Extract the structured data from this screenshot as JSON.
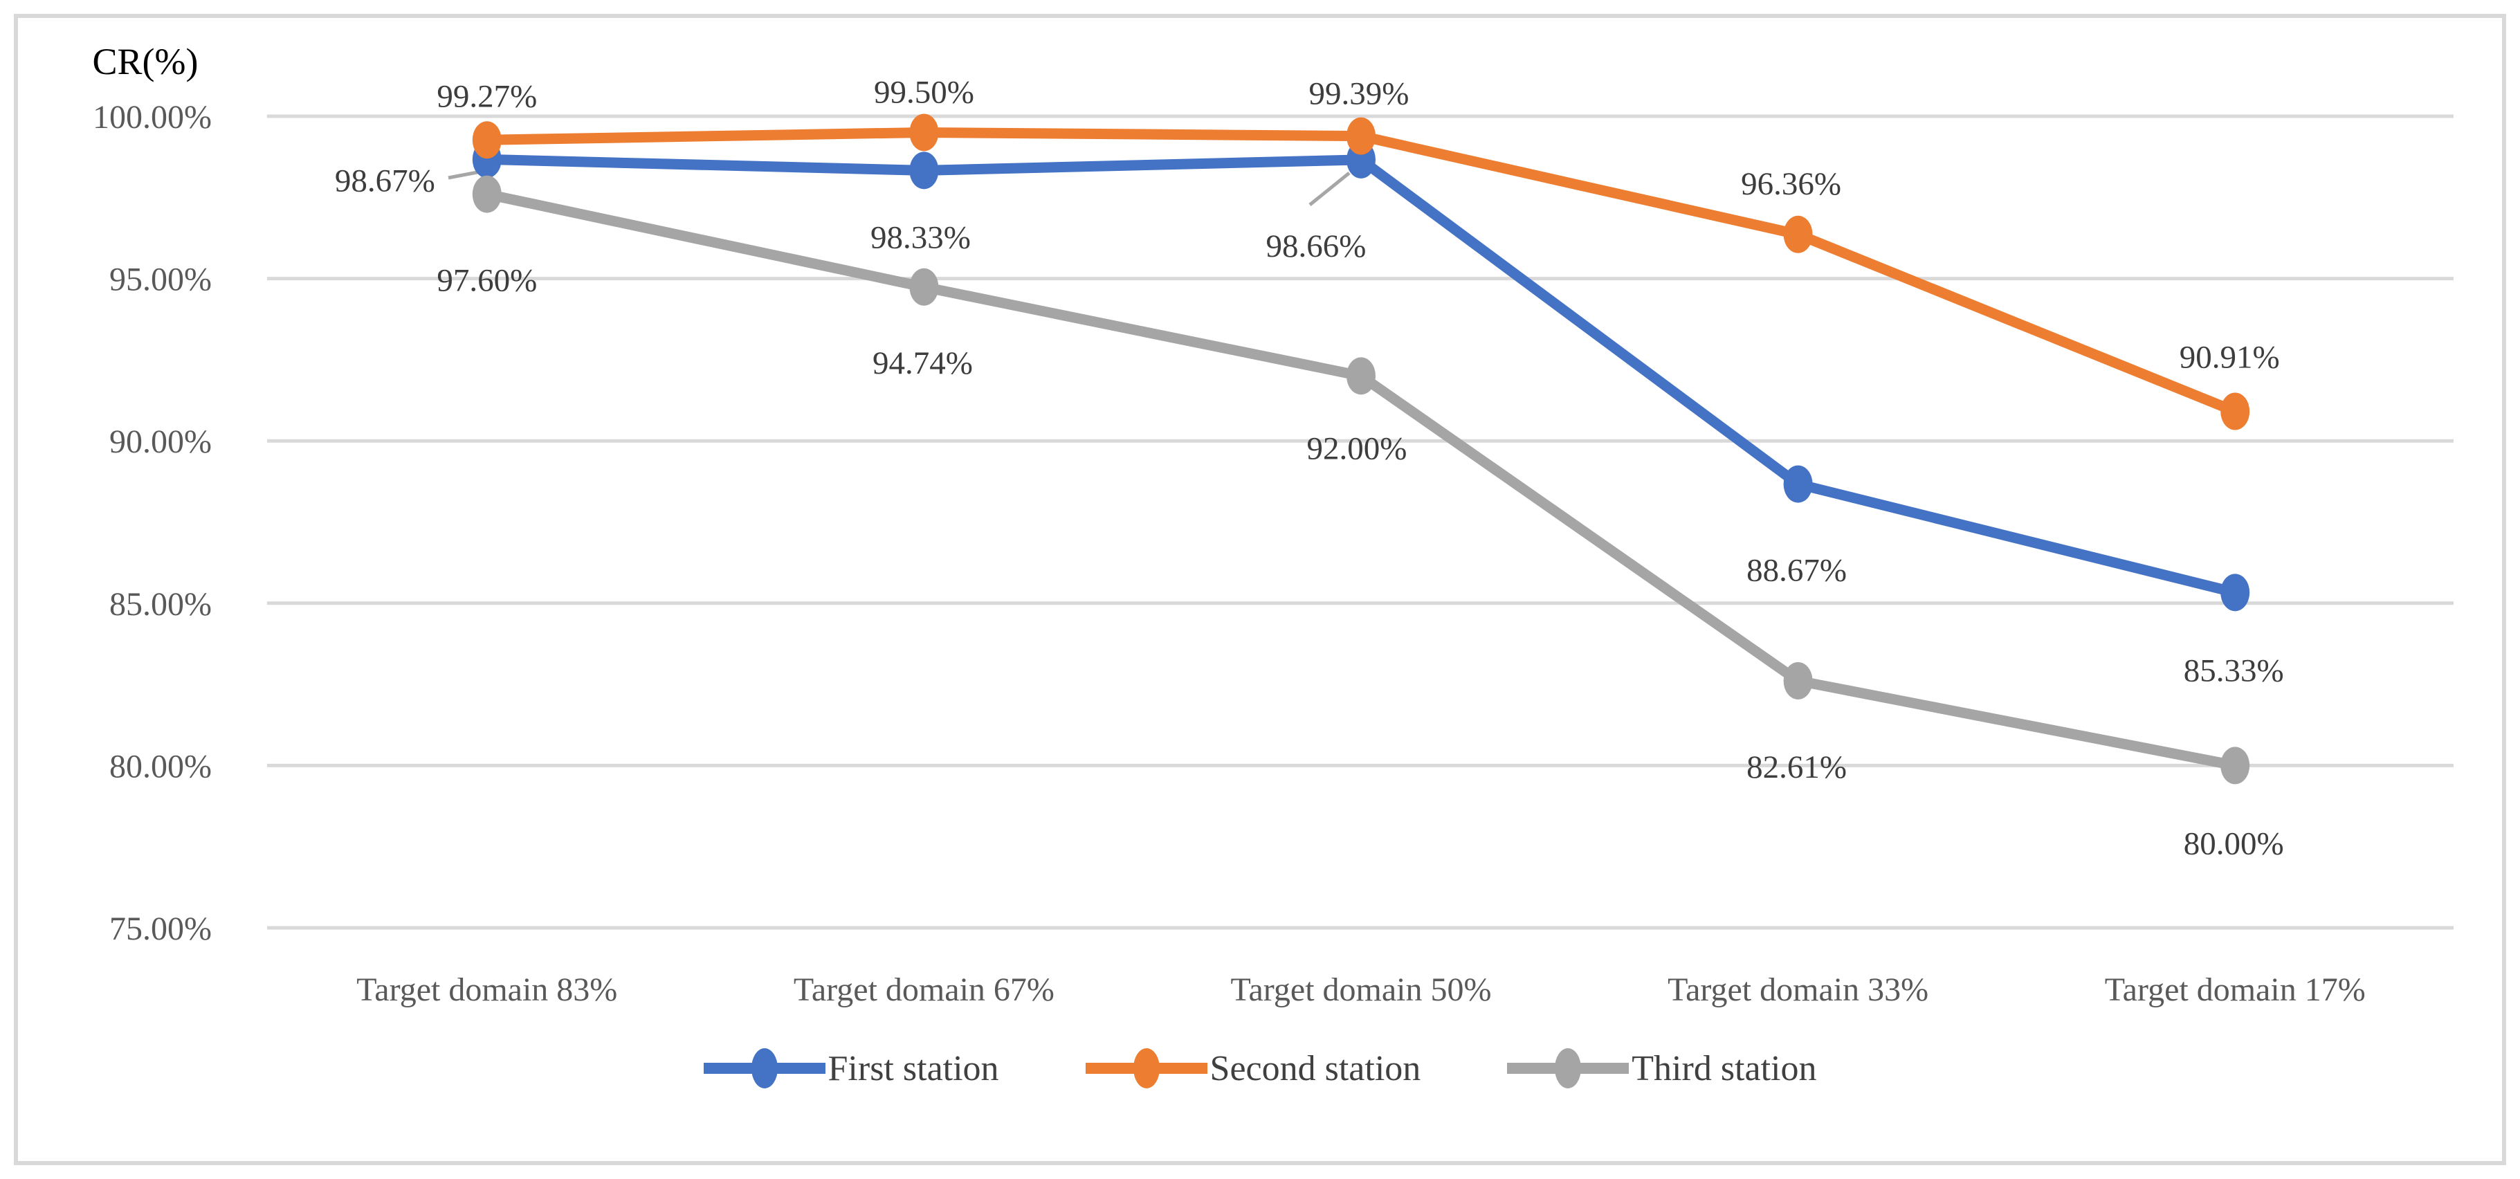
{
  "chart_data": {
    "type": "line",
    "title": "CR(%)",
    "categories": [
      "Target domain 83%",
      "Target domain 67%",
      "Target domain 50%",
      "Target domain 33%",
      "Target domain 17%"
    ],
    "series": [
      {
        "name": "First station",
        "color": "#4472C4",
        "values": [
          98.67,
          98.33,
          98.66,
          88.67,
          85.33
        ],
        "labels": [
          "98.67%",
          "98.33%",
          "98.66%",
          "88.67%",
          "85.33%"
        ]
      },
      {
        "name": "Second station",
        "color": "#ED7D31",
        "values": [
          99.27,
          99.5,
          99.39,
          96.36,
          90.91
        ],
        "labels": [
          "99.27%",
          "99.50%",
          "99.39%",
          "96.36%",
          "90.91%"
        ]
      },
      {
        "name": "Third station",
        "color": "#A5A5A5",
        "values": [
          97.6,
          94.74,
          92.0,
          82.61,
          80.0
        ],
        "labels": [
          "97.60%",
          "94.74%",
          "92.00%",
          "82.61%",
          "80.00%"
        ]
      }
    ],
    "y_axis": {
      "min": 75,
      "max": 100,
      "step": 5,
      "tick_labels": [
        "100.00%",
        "95.00%",
        "90.00%",
        "85.00%",
        "80.00%",
        "75.00%"
      ]
    },
    "legend": {
      "position": "bottom",
      "entries": [
        "First station",
        "Second station",
        "Third station"
      ]
    },
    "grid": true,
    "colors": {
      "gridline": "#d9d9d9",
      "frame": "#d9d9d9",
      "axis_text": "#595959",
      "data_label_text": "#3d3d3d",
      "title_text": "#000000",
      "leader_line": "#a6a6a6"
    }
  }
}
